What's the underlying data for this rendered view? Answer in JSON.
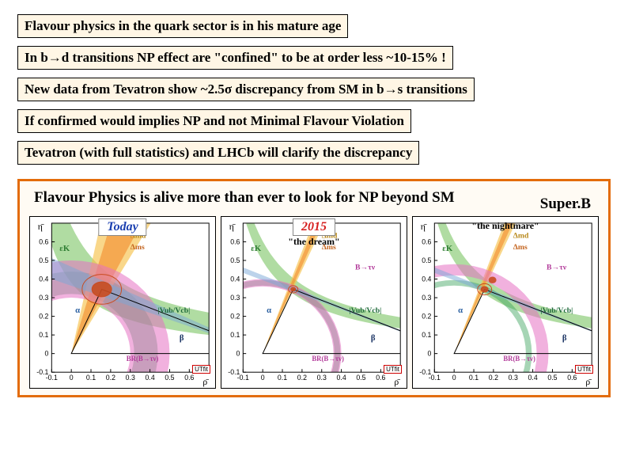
{
  "bullets": [
    "Flavour physics in the quark sector is in his mature age",
    "In b→d transitions NP effect are \"confined\" to be at order less ~10-15% !",
    "New data from Tevatron show ~2.5σ discrepancy from SM in b→s transitions",
    "If confirmed would implies NP and not Minimal Flavour Violation",
    "Tevatron (with full statistics) and LHCb will clarify the discrepancy"
  ],
  "headline": "Flavour Physics is alive more than ever to look for NP beyond SM",
  "superb_label": "Super.B",
  "plots": [
    {
      "title": "Today",
      "title_color": "#1a3fb0",
      "subtitle": ""
    },
    {
      "title": "2015",
      "title_color": "#d62020",
      "subtitle": "\"the dream\""
    },
    {
      "title": "",
      "title_color": "#000000",
      "subtitle": "\"the nightmare\""
    }
  ],
  "axes": {
    "x_range": [
      -0.1,
      0.7
    ],
    "x_ticks": [
      -0.1,
      0,
      0.1,
      0.2,
      0.3,
      0.4,
      0.5,
      0.6
    ],
    "y_range": [
      -0.1,
      0.7
    ],
    "y_ticks": [
      -0.1,
      0,
      0.1,
      0.2,
      0.3,
      0.4,
      0.5,
      0.6
    ],
    "x_label": "ρ̄",
    "y_label": "η̄"
  },
  "bands": {
    "eps_k": {
      "color": "#6fbf55",
      "opacity": 0.55
    },
    "dmd": {
      "color": "#f6c24b",
      "opacity": 0.65
    },
    "dmd_dms": {
      "color": "#f29133",
      "opacity": 0.65
    },
    "vub_vcb": {
      "color": "#3aa15a",
      "opacity": 0.45
    },
    "alpha": {
      "color": "#6da8e8",
      "opacity": 0.55
    },
    "btaunu": {
      "color": "#e571c3",
      "opacity": 0.55
    },
    "beta_line": {
      "color": "#202020",
      "width": 1.2
    },
    "fit_fill": {
      "color": "#c94b1f",
      "opacity": 0.9
    }
  },
  "labels_common": {
    "eps_k": "εK",
    "dmd": "Δmd",
    "dms": "Δms",
    "vub_vcb": "|Vub/Vcb|",
    "alpha": "α",
    "beta": "β",
    "btaunu": "BR(B→τν)",
    "b2tau": "B→τν",
    "ut": "UTfit"
  },
  "best_fit": {
    "rho": 0.155,
    "eta": 0.345
  }
}
